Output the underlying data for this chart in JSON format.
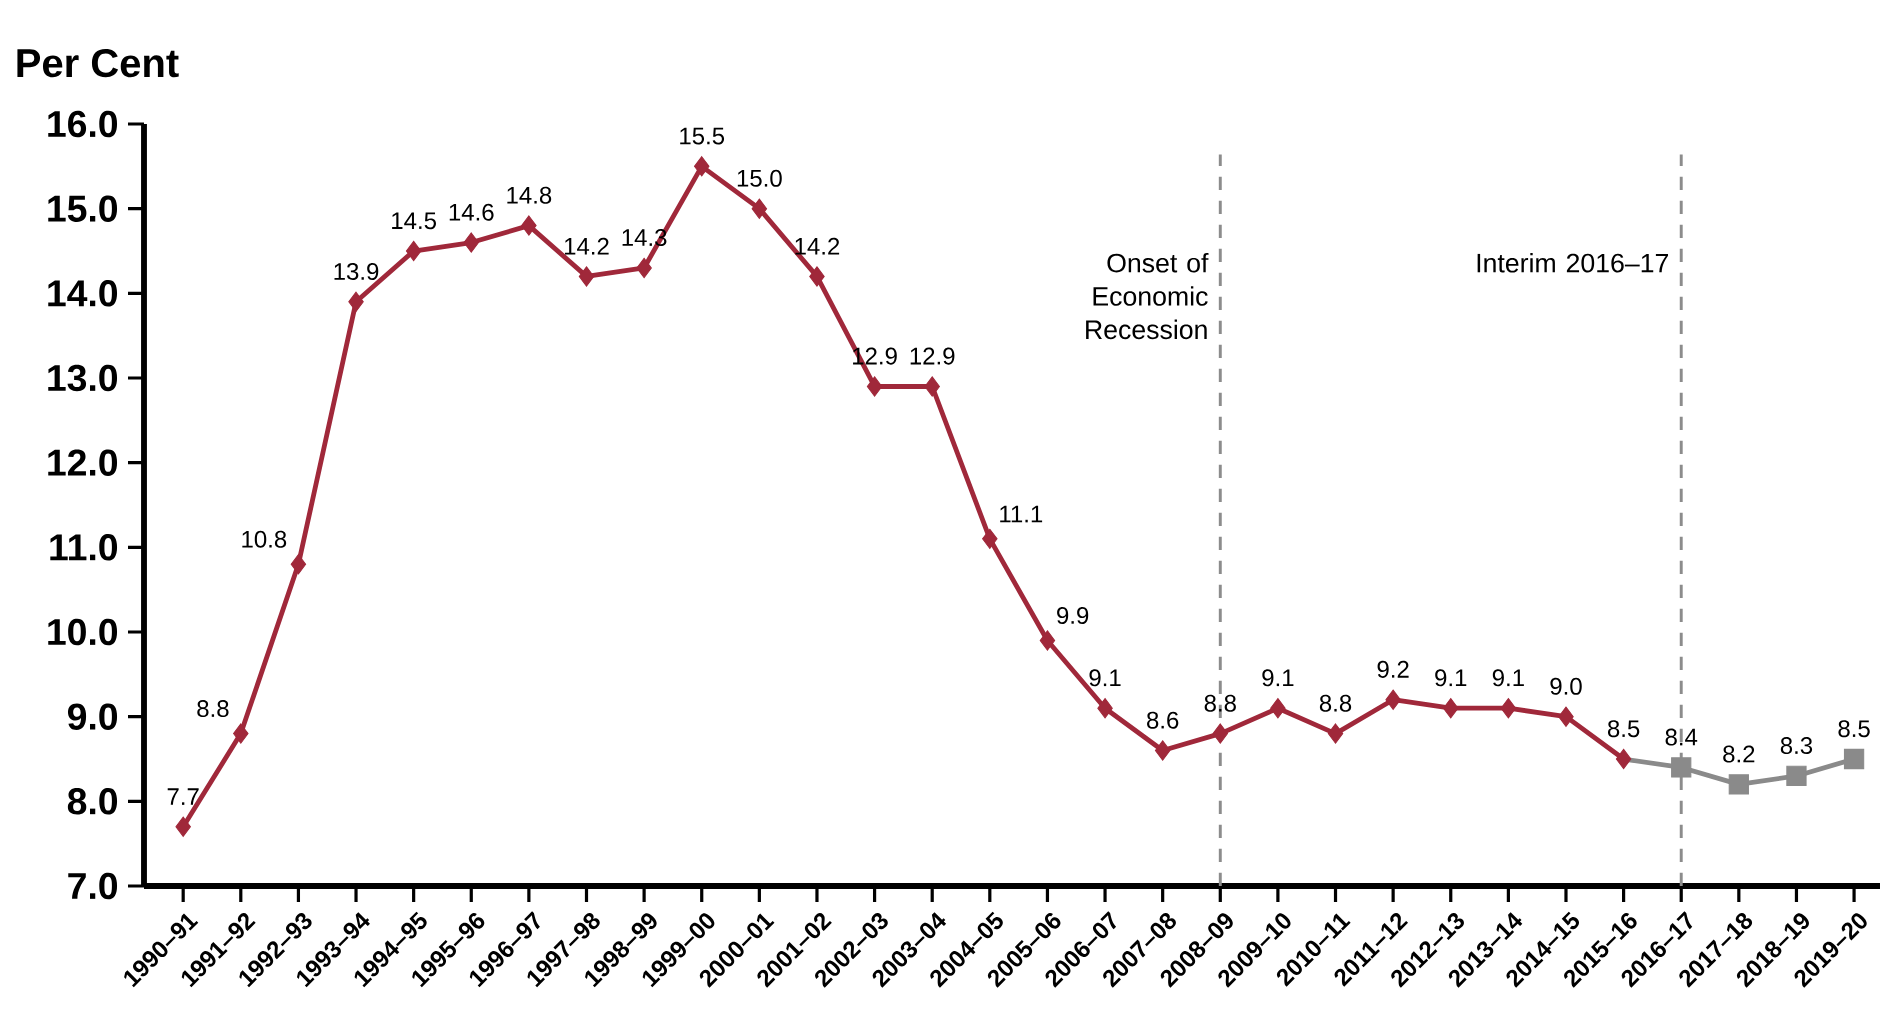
{
  "chart_data": {
    "type": "line",
    "ylabel": "Per Cent",
    "categories": [
      "1990–91",
      "1991–92",
      "1992–93",
      "1993–94",
      "1994–95",
      "1995–96",
      "1996–97",
      "1997–98",
      "1998–99",
      "1999–00",
      "2000–01",
      "2001–02",
      "2002–03",
      "2003–04",
      "2004–05",
      "2005–06",
      "2006–07",
      "2007–08",
      "2008–09",
      "2009–10",
      "2010–11",
      "2011–12",
      "2012–13",
      "2013–14",
      "2014–15",
      "2015–16",
      "2016–17",
      "2017–18",
      "2018–19",
      "2019–20"
    ],
    "series": [
      {
        "color": "#a0283a",
        "marker": "diamond",
        "values": [
          7.7,
          8.8,
          10.8,
          13.9,
          14.5,
          14.6,
          14.8,
          14.2,
          14.3,
          15.5,
          15.0,
          14.2,
          12.9,
          12.9,
          11.1,
          9.9,
          9.1,
          8.6,
          8.8,
          9.1,
          8.8,
          9.2,
          9.1,
          9.1,
          9.0,
          8.5,
          null,
          null,
          null,
          null
        ],
        "value_labels": [
          "7.7",
          "8.8",
          "10.8",
          "13.9",
          "14.5",
          "14.6",
          "14.8",
          "14.2",
          "14.3",
          "15.5",
          "15.0",
          "14.2",
          "12.9",
          "12.9",
          "11.1",
          "9.9",
          "9.1",
          "8.6",
          "8.8",
          "9.1",
          "8.8",
          "9.2",
          "9.1",
          "9.1",
          "9.0",
          "8.5",
          null,
          null,
          null,
          null
        ]
      },
      {
        "color": "#8a8a8a",
        "marker": "square",
        "values": [
          null,
          null,
          null,
          null,
          null,
          null,
          null,
          null,
          null,
          null,
          null,
          null,
          null,
          null,
          null,
          null,
          null,
          null,
          null,
          null,
          null,
          null,
          null,
          null,
          null,
          8.5,
          8.4,
          8.2,
          8.3,
          8.5
        ],
        "value_labels": [
          null,
          null,
          null,
          null,
          null,
          null,
          null,
          null,
          null,
          null,
          null,
          null,
          null,
          null,
          null,
          null,
          null,
          null,
          null,
          null,
          null,
          null,
          null,
          null,
          null,
          null,
          "8.4",
          "8.2",
          "8.3",
          "8.5"
        ]
      }
    ],
    "ylim": [
      7,
      16
    ],
    "yticks": [
      {
        "value": 7,
        "label": "7.0"
      },
      {
        "value": 8,
        "label": "8.0"
      },
      {
        "value": 9,
        "label": "9.0"
      },
      {
        "value": 10,
        "label": "10.0"
      },
      {
        "value": 11,
        "label": "11.0"
      },
      {
        "value": 12,
        "label": "12.0"
      },
      {
        "value": 13,
        "label": "13.0"
      },
      {
        "value": 14,
        "label": "14.0"
      },
      {
        "value": 15,
        "label": "15.0"
      },
      {
        "value": 16,
        "label": "16.0"
      }
    ],
    "ref_lines": [
      {
        "axis": "x",
        "value": "2008–09",
        "label": "Onset of Economic Recession",
        "color": "#8c8c8c",
        "line_style": "dashed"
      },
      {
        "axis": "x",
        "value": "2016–17",
        "label": "Interim 2016–17",
        "color": "#8c8c8c",
        "line_style": "dashed"
      }
    ],
    "grid": false
  }
}
